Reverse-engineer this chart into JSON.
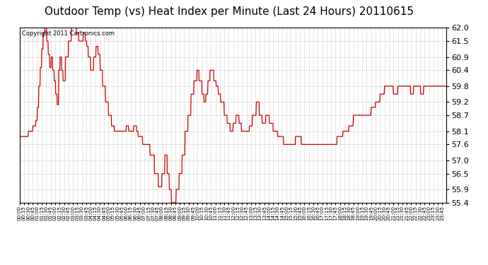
{
  "title": "Outdoor Temp (vs) Heat Index per Minute (Last 24 Hours) 20110615",
  "copyright_text": "Copyright 2011 Cartronics.com",
  "ylim": [
    55.4,
    62.0
  ],
  "yticks": [
    55.4,
    55.9,
    56.5,
    57.0,
    57.6,
    58.1,
    58.7,
    59.2,
    59.8,
    60.4,
    60.9,
    61.5,
    62.0
  ],
  "line_color": "#cc0000",
  "bg_color": "#ffffff",
  "grid_color": "#b0b0b0",
  "title_fontsize": 11,
  "total_minutes": 1440
}
